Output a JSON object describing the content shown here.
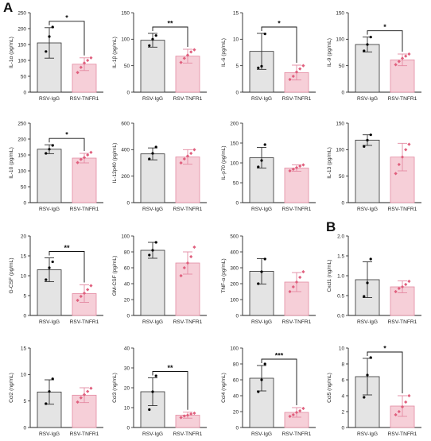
{
  "panel_labels": [
    "A",
    "B"
  ],
  "colors": {
    "control_fill": "#e4e4e4",
    "control_stroke": "#303030",
    "control_point": "#000000",
    "treated_fill": "#f6cfd8",
    "treated_stroke": "#e48aa2",
    "treated_point": "#e0607e",
    "axis": "#222222"
  },
  "chart_data": [
    {
      "type": "bar",
      "panel": "A",
      "ylabel": "IL-1α (pg/mL)",
      "categories": [
        "RSV-IgG",
        "RSV-TNFR1"
      ],
      "values": [
        155,
        88
      ],
      "errors": [
        48,
        20
      ],
      "points": [
        [
          128,
          175,
          205
        ],
        [
          62,
          78,
          92,
          100,
          108
        ]
      ],
      "ylim": [
        0,
        250
      ],
      "yticks": [
        0,
        50,
        100,
        150,
        200,
        250
      ],
      "significance": "*"
    },
    {
      "type": "bar",
      "panel": "A",
      "ylabel": "IL-1β (pg/mL)",
      "categories": [
        "RSV-IgG",
        "RSV-TNFR1"
      ],
      "values": [
        98,
        68
      ],
      "errors": [
        13,
        13
      ],
      "points": [
        [
          88,
          100,
          107
        ],
        [
          56,
          64,
          70,
          76,
          80
        ]
      ],
      "ylim": [
        0,
        150
      ],
      "yticks": [
        0,
        50,
        100,
        150
      ],
      "significance": "**"
    },
    {
      "type": "bar",
      "panel": "A",
      "ylabel": "IL-6 (pg/mL)",
      "categories": [
        "RSV-IgG",
        "RSV-TNFR1"
      ],
      "values": [
        7.7,
        3.7
      ],
      "errors": [
        3.4,
        1.4
      ],
      "points": [
        [
          4.6,
          4.9,
          11
        ],
        [
          2.4,
          3.0,
          3.8,
          4.4,
          5.0
        ]
      ],
      "ylim": [
        0,
        15
      ],
      "yticks": [
        0,
        5,
        10,
        15
      ],
      "significance": "*"
    },
    {
      "type": "bar",
      "panel": "A",
      "ylabel": "IL-9 (pg/mL)",
      "categories": [
        "RSV-IgG",
        "RSV-TNFR1"
      ],
      "values": [
        90,
        61
      ],
      "errors": [
        14,
        11
      ],
      "points": [
        [
          78,
          90,
          104
        ],
        [
          52,
          58,
          64,
          68,
          72
        ]
      ],
      "ylim": [
        0,
        150
      ],
      "yticks": [
        0,
        50,
        100,
        150
      ],
      "significance": "*"
    },
    {
      "type": "bar",
      "panel": "A",
      "ylabel": "IL-10 (pg/mL)",
      "categories": [
        "RSV-IgG",
        "RSV-TNFR1"
      ],
      "values": [
        168,
        140
      ],
      "errors": [
        14,
        15
      ],
      "points": [
        [
          155,
          168,
          180
        ],
        [
          126,
          136,
          142,
          150,
          158
        ]
      ],
      "ylim": [
        0,
        250
      ],
      "yticks": [
        0,
        50,
        100,
        150,
        200,
        250
      ],
      "significance": "*"
    },
    {
      "type": "bar",
      "panel": "A",
      "ylabel": "IL-12p40 (pg/mL)",
      "categories": [
        "RSV-IgG",
        "RSV-TNFR1"
      ],
      "values": [
        368,
        345
      ],
      "errors": [
        45,
        55
      ],
      "points": [
        [
          330,
          372,
          420
        ],
        [
          300,
          330,
          352,
          372,
          400
        ]
      ],
      "ylim": [
        0,
        600
      ],
      "yticks": [
        0,
        200,
        400,
        600
      ],
      "significance": ""
    },
    {
      "type": "bar",
      "panel": "A",
      "ylabel": "IL-p70 (pg/mL)",
      "categories": [
        "RSV-IgG",
        "RSV-TNFR1"
      ],
      "values": [
        113,
        87
      ],
      "errors": [
        26,
        8
      ],
      "points": [
        [
          90,
          106,
          146
        ],
        [
          80,
          84,
          88,
          92,
          95
        ]
      ],
      "ylim": [
        0,
        200
      ],
      "yticks": [
        0,
        50,
        100,
        150,
        200
      ],
      "significance": ""
    },
    {
      "type": "bar",
      "panel": "A",
      "ylabel": "IL-13 (pg/mL)",
      "categories": [
        "RSV-IgG",
        "RSV-TNFR1"
      ],
      "values": [
        118,
        86
      ],
      "errors": [
        10,
        26
      ],
      "points": [
        [
          106,
          118,
          128
        ],
        [
          55,
          72,
          86,
          100,
          110
        ]
      ],
      "ylim": [
        0,
        150
      ],
      "yticks": [
        0,
        50,
        100,
        150
      ],
      "significance": ""
    },
    {
      "type": "bar",
      "panel": "A",
      "ylabel": "G-CSF (pg/mL)",
      "categories": [
        "RSV-IgG",
        "RSV-TNFR1"
      ],
      "values": [
        11.5,
        5.5
      ],
      "errors": [
        3.0,
        2.2
      ],
      "points": [
        [
          9,
          12,
          13.5
        ],
        [
          3.8,
          4.8,
          5.6,
          6.5,
          7.5
        ]
      ],
      "ylim": [
        0,
        20
      ],
      "yticks": [
        0,
        5,
        10,
        15,
        20
      ],
      "significance": "**"
    },
    {
      "type": "bar",
      "panel": "A",
      "ylabel": "GM-CSF (pg/mL)",
      "categories": [
        "RSV-IgG",
        "RSV-TNFR1"
      ],
      "values": [
        82,
        66
      ],
      "errors": [
        10,
        14
      ],
      "points": [
        [
          76,
          82,
          92
        ],
        [
          50,
          60,
          66,
          74,
          86
        ]
      ],
      "ylim": [
        0,
        100
      ],
      "yticks": [
        0,
        20,
        40,
        60,
        80,
        100
      ],
      "significance": ""
    },
    {
      "type": "bar",
      "panel": "A",
      "ylabel": "TNF-α (pg/mL)",
      "categories": [
        "RSV-IgG",
        "RSV-TNFR1"
      ],
      "values": [
        278,
        210
      ],
      "errors": [
        80,
        60
      ],
      "points": [
        [
          200,
          275,
          355
        ],
        [
          150,
          180,
          210,
          240,
          275
        ]
      ],
      "ylim": [
        0,
        500
      ],
      "yticks": [
        0,
        100,
        200,
        300,
        400,
        500
      ],
      "significance": ""
    },
    {
      "type": "bar",
      "panel": "B",
      "ylabel": "Cxcl1 (ng/mL)",
      "categories": [
        "RSV-IgG",
        "RSV-TNFR1"
      ],
      "values": [
        0.9,
        0.72
      ],
      "errors": [
        0.45,
        0.15
      ],
      "points": [
        [
          0.48,
          0.82,
          1.42
        ],
        [
          0.6,
          0.68,
          0.72,
          0.78,
          0.86
        ]
      ],
      "ylim": [
        0,
        2.0
      ],
      "yticks": [
        0.0,
        0.5,
        1.0,
        1.5,
        2.0
      ],
      "significance": ""
    },
    {
      "type": "bar",
      "panel": "B",
      "ylabel": "Ccl2 (ng/mL)",
      "categories": [
        "RSV-IgG",
        "RSV-TNFR1"
      ],
      "values": [
        6.7,
        6.1
      ],
      "errors": [
        2.3,
        1.4
      ],
      "points": [
        [
          4.5,
          6.8,
          9.2
        ],
        [
          4.8,
          5.6,
          6.2,
          6.8,
          7.4
        ]
      ],
      "ylim": [
        0,
        15
      ],
      "yticks": [
        0,
        5,
        10,
        15
      ],
      "significance": ""
    },
    {
      "type": "bar",
      "panel": "B",
      "ylabel": "Ccl3 (ng/mL)",
      "categories": [
        "RSV-IgG",
        "RSV-TNFR1"
      ],
      "values": [
        18,
        6.2
      ],
      "errors": [
        7,
        1.5
      ],
      "points": [
        [
          9,
          18,
          26
        ],
        [
          5,
          5.8,
          6.2,
          6.8,
          7.2
        ]
      ],
      "ylim": [
        0,
        40
      ],
      "yticks": [
        0,
        10,
        20,
        30,
        40
      ],
      "significance": "**"
    },
    {
      "type": "bar",
      "panel": "B",
      "ylabel": "Ccl4 (ng/mL)",
      "categories": [
        "RSV-IgG",
        "RSV-TNFR1"
      ],
      "values": [
        62,
        19
      ],
      "errors": [
        16,
        6
      ],
      "points": [
        [
          45,
          60,
          80
        ],
        [
          14,
          16,
          19,
          21,
          24
        ]
      ],
      "ylim": [
        0,
        100
      ],
      "yticks": [
        0,
        20,
        40,
        60,
        80,
        100
      ],
      "significance": "***"
    },
    {
      "type": "bar",
      "panel": "B",
      "ylabel": "Ccl5 (ng/mL)",
      "categories": [
        "RSV-IgG",
        "RSV-TNFR1"
      ],
      "values": [
        6.4,
        2.7
      ],
      "errors": [
        2.3,
        1.3
      ],
      "points": [
        [
          3.8,
          6.6,
          8.8
        ],
        [
          1.6,
          2.0,
          2.6,
          3.2,
          4.0
        ]
      ],
      "ylim": [
        0,
        10
      ],
      "yticks": [
        0,
        2,
        4,
        6,
        8,
        10
      ],
      "significance": "*"
    }
  ]
}
